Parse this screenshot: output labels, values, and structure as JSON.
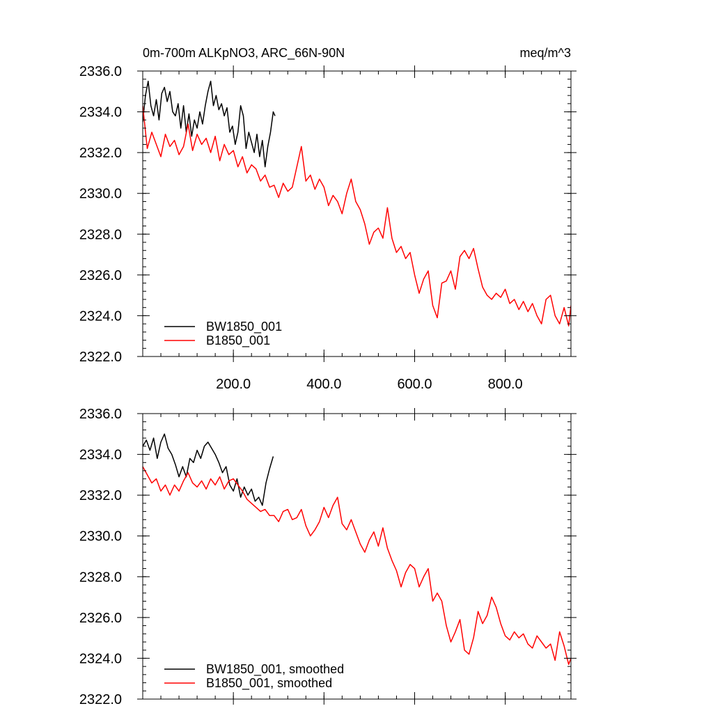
{
  "chart_data": [
    {
      "type": "line",
      "title": "0m-700m ALKpNO3, ARC_66N-90N",
      "units": "meq/m^3",
      "xlim": [
        0,
        945
      ],
      "ylim": [
        2322.0,
        2336.0
      ],
      "xticks": [
        200,
        400,
        600,
        800
      ],
      "xtick_labels": [
        "200.0",
        "400.0",
        "600.0",
        "800.0"
      ],
      "yticks": [
        2322,
        2324,
        2326,
        2328,
        2330,
        2332,
        2334,
        2336
      ],
      "ytick_labels": [
        "2322.0",
        "2324.0",
        "2326.0",
        "2328.0",
        "2330.0",
        "2332.0",
        "2334.0",
        "2336.0"
      ],
      "legend_position": "bottom-left",
      "series": [
        {
          "name": "BW1850_001",
          "color": "#000000",
          "x": [
            0,
            6,
            12,
            18,
            24,
            30,
            36,
            42,
            48,
            54,
            60,
            66,
            72,
            78,
            84,
            90,
            96,
            102,
            108,
            114,
            120,
            126,
            132,
            138,
            144,
            150,
            156,
            162,
            168,
            174,
            180,
            186,
            192,
            198,
            204,
            210,
            216,
            222,
            228,
            234,
            240,
            246,
            252,
            258,
            264,
            270,
            276,
            282,
            288,
            292
          ],
          "y": [
            2333.5,
            2334.8,
            2335.5,
            2334.3,
            2333.8,
            2334.6,
            2333.6,
            2334.9,
            2335.2,
            2334.5,
            2335.0,
            2334.0,
            2333.8,
            2334.4,
            2333.2,
            2334.3,
            2333.0,
            2333.9,
            2332.8,
            2333.6,
            2333.2,
            2334.0,
            2333.4,
            2334.3,
            2335.0,
            2335.5,
            2334.3,
            2334.8,
            2334.1,
            2334.4,
            2333.8,
            2334.2,
            2333.0,
            2333.3,
            2332.4,
            2333.0,
            2334.3,
            2333.8,
            2332.2,
            2333.0,
            2332.5,
            2332.0,
            2332.9,
            2331.8,
            2332.6,
            2331.3,
            2332.3,
            2333.0,
            2334.0,
            2333.8
          ]
        },
        {
          "name": "B1850_001",
          "color": "#ff0000",
          "x": [
            0,
            10,
            20,
            30,
            40,
            50,
            60,
            70,
            80,
            90,
            100,
            110,
            120,
            130,
            140,
            150,
            160,
            170,
            180,
            190,
            200,
            210,
            220,
            230,
            240,
            250,
            260,
            270,
            280,
            290,
            300,
            310,
            320,
            330,
            340,
            350,
            360,
            370,
            380,
            390,
            400,
            410,
            420,
            430,
            440,
            450,
            460,
            470,
            480,
            490,
            500,
            510,
            520,
            530,
            540,
            550,
            560,
            570,
            580,
            590,
            600,
            610,
            620,
            630,
            640,
            650,
            660,
            670,
            680,
            690,
            700,
            710,
            720,
            730,
            740,
            750,
            760,
            770,
            780,
            790,
            800,
            810,
            820,
            830,
            840,
            850,
            860,
            870,
            880,
            890,
            900,
            910,
            920,
            930,
            940,
            945
          ],
          "y": [
            2334.3,
            2332.2,
            2333.0,
            2332.4,
            2331.8,
            2332.9,
            2332.3,
            2332.6,
            2331.9,
            2332.3,
            2333.4,
            2332.1,
            2332.9,
            2332.4,
            2332.7,
            2332.0,
            2332.8,
            2331.6,
            2332.4,
            2331.9,
            2332.1,
            2331.3,
            2331.8,
            2331.0,
            2331.4,
            2331.2,
            2330.6,
            2330.9,
            2330.3,
            2330.4,
            2329.8,
            2330.5,
            2330.1,
            2330.3,
            2331.3,
            2332.3,
            2330.6,
            2330.9,
            2330.2,
            2330.7,
            2330.3,
            2329.4,
            2329.9,
            2329.6,
            2329.0,
            2330.0,
            2330.7,
            2329.6,
            2329.2,
            2328.5,
            2327.5,
            2328.1,
            2328.3,
            2327.8,
            2329.3,
            2327.8,
            2327.1,
            2327.4,
            2326.8,
            2327.1,
            2326.0,
            2325.1,
            2325.8,
            2326.2,
            2324.5,
            2323.9,
            2325.6,
            2325.7,
            2326.2,
            2325.3,
            2326.9,
            2327.2,
            2326.8,
            2327.3,
            2326.3,
            2325.4,
            2325.0,
            2324.8,
            2325.1,
            2324.9,
            2325.3,
            2324.6,
            2324.8,
            2324.3,
            2324.7,
            2324.2,
            2324.6,
            2324.0,
            2323.6,
            2324.8,
            2325.0,
            2324.0,
            2323.6,
            2324.4,
            2323.5,
            2324.5
          ]
        }
      ]
    },
    {
      "type": "line",
      "title": "",
      "xlim": [
        0,
        945
      ],
      "ylim": [
        2322.0,
        2336.0
      ],
      "xticks": [
        200,
        400,
        600,
        800
      ],
      "xtick_labels": [
        "",
        "",
        "",
        ""
      ],
      "yticks": [
        2322,
        2324,
        2326,
        2328,
        2330,
        2332,
        2334,
        2336
      ],
      "ytick_labels": [
        "2322.0",
        "2324.0",
        "2326.0",
        "2328.0",
        "2330.0",
        "2332.0",
        "2334.0",
        "2336.0"
      ],
      "legend_position": "bottom-left",
      "series": [
        {
          "name": "BW1850_001, smoothed",
          "color": "#000000",
          "x": [
            0,
            8,
            16,
            24,
            32,
            40,
            48,
            56,
            64,
            72,
            80,
            88,
            96,
            104,
            112,
            120,
            128,
            136,
            144,
            152,
            160,
            168,
            176,
            184,
            192,
            200,
            208,
            216,
            224,
            232,
            240,
            248,
            256,
            264,
            272,
            280,
            288
          ],
          "y": [
            2334.4,
            2334.7,
            2334.2,
            2334.8,
            2333.8,
            2334.6,
            2335.0,
            2334.3,
            2334.0,
            2333.5,
            2332.9,
            2333.4,
            2332.9,
            2333.8,
            2333.6,
            2334.2,
            2333.8,
            2334.4,
            2334.6,
            2334.3,
            2334.0,
            2333.6,
            2333.1,
            2333.4,
            2332.5,
            2332.2,
            2332.8,
            2331.9,
            2332.4,
            2332.0,
            2332.3,
            2331.7,
            2331.9,
            2331.5,
            2332.6,
            2333.3,
            2333.9
          ]
        },
        {
          "name": "B1850_001, smoothed",
          "color": "#ff0000",
          "x": [
            0,
            10,
            20,
            30,
            40,
            50,
            60,
            70,
            80,
            90,
            100,
            110,
            120,
            130,
            140,
            150,
            160,
            170,
            180,
            190,
            200,
            210,
            220,
            230,
            240,
            250,
            260,
            270,
            280,
            290,
            300,
            310,
            320,
            330,
            340,
            350,
            360,
            370,
            380,
            390,
            400,
            410,
            420,
            430,
            440,
            450,
            460,
            470,
            480,
            490,
            500,
            510,
            520,
            530,
            540,
            550,
            560,
            570,
            580,
            590,
            600,
            610,
            620,
            630,
            640,
            650,
            660,
            670,
            680,
            690,
            700,
            710,
            720,
            730,
            740,
            750,
            760,
            770,
            780,
            790,
            800,
            810,
            820,
            830,
            840,
            850,
            860,
            870,
            880,
            890,
            900,
            910,
            920,
            930,
            940,
            945
          ],
          "y": [
            2333.4,
            2333.0,
            2332.6,
            2332.8,
            2332.2,
            2332.5,
            2332.0,
            2332.5,
            2332.2,
            2332.7,
            2333.1,
            2332.6,
            2332.4,
            2332.7,
            2332.3,
            2332.8,
            2332.5,
            2332.9,
            2332.3,
            2332.7,
            2332.8,
            2332.5,
            2332.2,
            2331.8,
            2331.6,
            2331.4,
            2331.2,
            2331.3,
            2331.0,
            2331.0,
            2330.7,
            2331.2,
            2331.3,
            2330.8,
            2330.9,
            2331.3,
            2330.5,
            2330.0,
            2330.3,
            2330.7,
            2331.4,
            2330.9,
            2331.5,
            2331.9,
            2330.6,
            2330.3,
            2330.8,
            2330.2,
            2329.6,
            2329.2,
            2329.8,
            2330.2,
            2329.5,
            2330.4,
            2329.4,
            2328.8,
            2328.3,
            2327.5,
            2328.2,
            2328.6,
            2328.4,
            2327.5,
            2328.0,
            2328.4,
            2326.8,
            2327.2,
            2326.8,
            2325.6,
            2324.8,
            2325.3,
            2325.9,
            2324.4,
            2324.2,
            2325.0,
            2326.3,
            2325.7,
            2326.1,
            2327.0,
            2326.5,
            2325.7,
            2325.1,
            2324.9,
            2325.3,
            2325.0,
            2325.2,
            2324.7,
            2324.5,
            2325.1,
            2324.8,
            2324.5,
            2324.7,
            2323.9,
            2325.3,
            2324.6,
            2323.7,
            2324.0
          ]
        }
      ]
    }
  ]
}
